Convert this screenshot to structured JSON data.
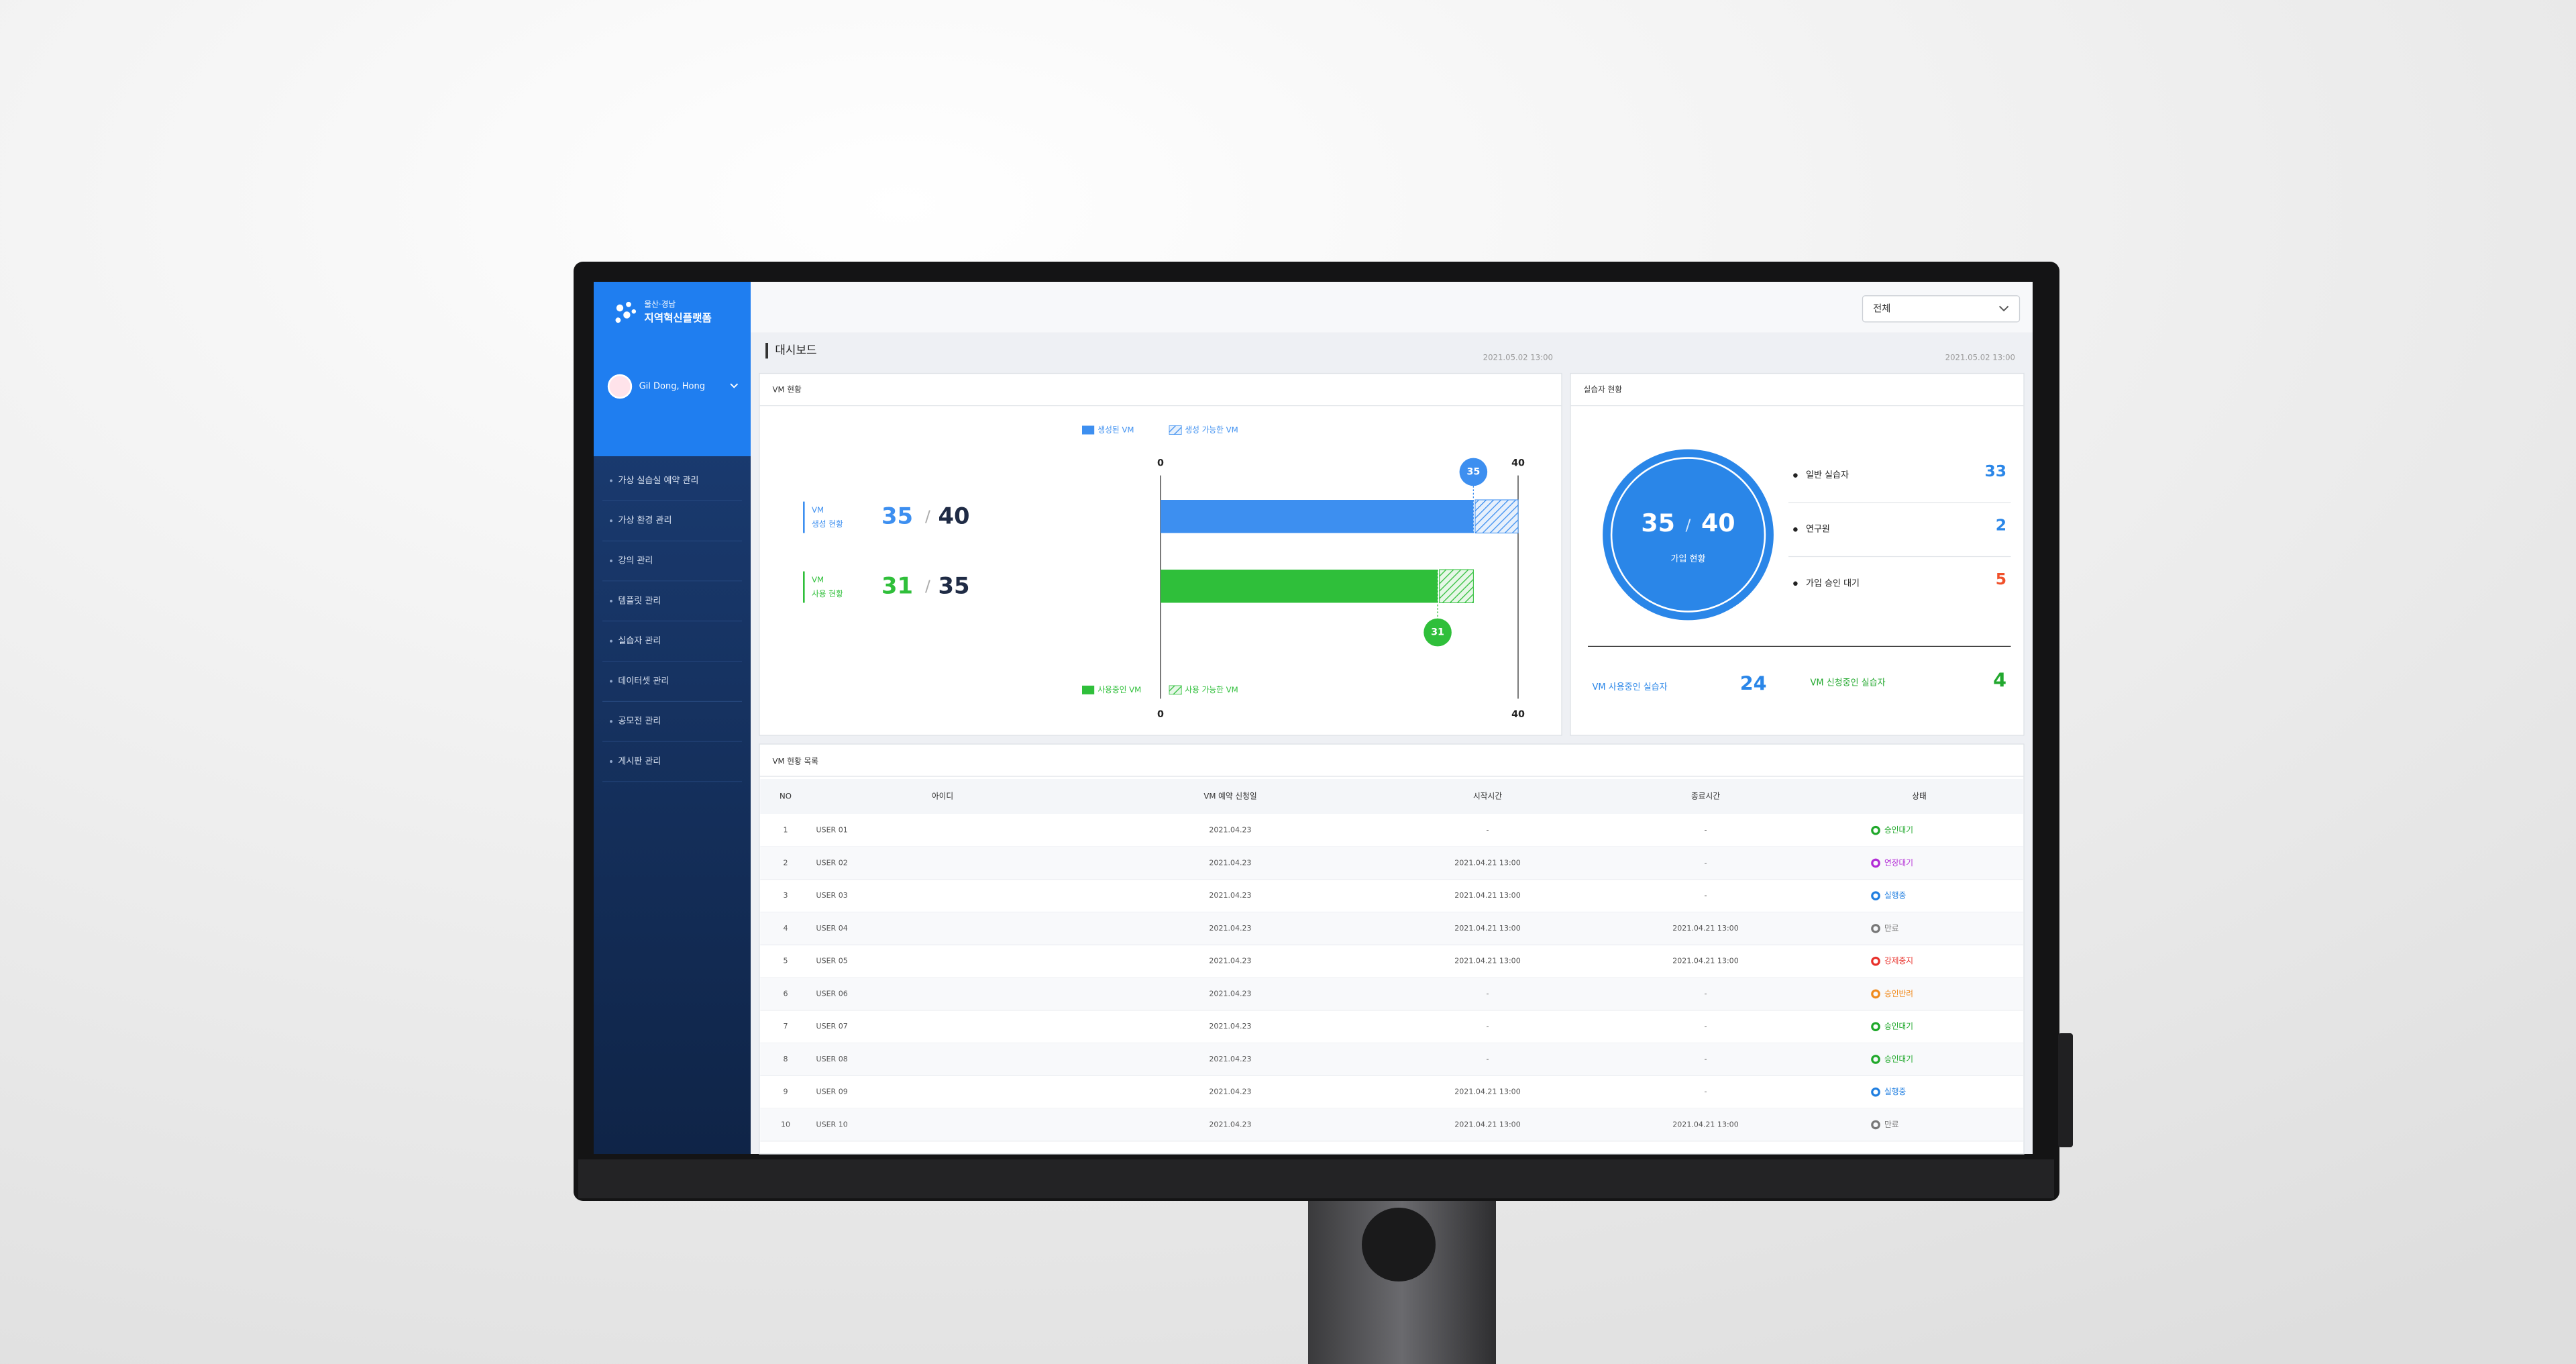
{
  "filter": "전체",
  "sidebar": {
    "logo_line1": "울산·경남",
    "logo_line2": "지역혁신플랫폼",
    "user": "Gil Dong, Hong",
    "menu": [
      "가상 실습실 예약 관리",
      "가상 환경 관리",
      "강의 관리",
      "템플릿 관리",
      "실습자 관리",
      "데이터셋 관리",
      "공모전 관리",
      "게시판 관리"
    ]
  },
  "header": {
    "title": "대시보드"
  },
  "vm_status": {
    "title": "VM 현황",
    "timestamp": "2021.05.02  13:00",
    "separator": "/",
    "axis_min": 0,
    "axis_max": 40,
    "legend_top": [
      "생성된 VM",
      "생성 가능한 VM"
    ],
    "legend_bottom": [
      "사용중인 VM",
      "사용 가능한 VM"
    ],
    "created": {
      "label_line1": "VM",
      "label_line2": "생성 현황",
      "value": 35,
      "total": 40,
      "color": "#3d8ff0"
    },
    "used": {
      "label_line1": "VM",
      "label_line2": "사용 현황",
      "value": 31,
      "total": 35,
      "color": "#2fbf3a"
    }
  },
  "trainee": {
    "title": "실습자 현황",
    "timestamp": "2021.05.02  13:00",
    "joined": 35,
    "capacity": 40,
    "center_label": "가입 현황",
    "items": [
      {
        "label": "일반 실습자",
        "value": 33,
        "color": "#2a86e8"
      },
      {
        "label": "연구원",
        "value": 2,
        "color": "#2a86e8"
      },
      {
        "label": "가입 승인 대기",
        "value": 5,
        "color": "#f0502a"
      }
    ],
    "vm_using": {
      "label": "VM 사용중인 실습자",
      "value": 24,
      "color": "#2a86e8"
    },
    "vm_requesting": {
      "label": "VM 신청중인 실습자",
      "value": 4,
      "color": "#22a82e"
    }
  },
  "vm_list": {
    "title": "VM 현황 목록",
    "columns": [
      "NO",
      "아이디",
      "VM 예약 신청일",
      "시작시간",
      "종료시간",
      "상태"
    ],
    "rows": [
      {
        "no": 1,
        "id": "USER 01",
        "date": "2021.04.23",
        "start": "-",
        "end": "-",
        "status": "승인대기",
        "status_color": "#1fa82a"
      },
      {
        "no": 2,
        "id": "USER 02",
        "date": "2021.04.23",
        "start": "2021.04.21  13:00",
        "end": "-",
        "status": "연장대기",
        "status_color": "#b22bd6"
      },
      {
        "no": 3,
        "id": "USER 03",
        "date": "2021.04.23",
        "start": "2021.04.21  13:00",
        "end": "-",
        "status": "실행중",
        "status_color": "#1f7ee0"
      },
      {
        "no": 4,
        "id": "USER 04",
        "date": "2021.04.23",
        "start": "2021.04.21  13:00",
        "end": "2021.04.21  13:00",
        "status": "만료",
        "status_color": "#777777"
      },
      {
        "no": 5,
        "id": "USER 05",
        "date": "2021.04.23",
        "start": "2021.04.21  13:00",
        "end": "2021.04.21  13:00",
        "status": "강제중지",
        "status_color": "#e8302a"
      },
      {
        "no": 6,
        "id": "USER 06",
        "date": "2021.04.23",
        "start": "-",
        "end": "-",
        "status": "승인반려",
        "status_color": "#f08a1c"
      },
      {
        "no": 7,
        "id": "USER 07",
        "date": "2021.04.23",
        "start": "-",
        "end": "-",
        "status": "승인대기",
        "status_color": "#1fa82a"
      },
      {
        "no": 8,
        "id": "USER 08",
        "date": "2021.04.23",
        "start": "-",
        "end": "-",
        "status": "승인대기",
        "status_color": "#1fa82a"
      },
      {
        "no": 9,
        "id": "USER 09",
        "date": "2021.04.23",
        "start": "2021.04.21  13:00",
        "end": "-",
        "status": "실행중",
        "status_color": "#1f7ee0"
      },
      {
        "no": 10,
        "id": "USER 10",
        "date": "2021.04.23",
        "start": "2021.04.21  13:00",
        "end": "2021.04.21  13:00",
        "status": "만료",
        "status_color": "#777777"
      }
    ]
  }
}
